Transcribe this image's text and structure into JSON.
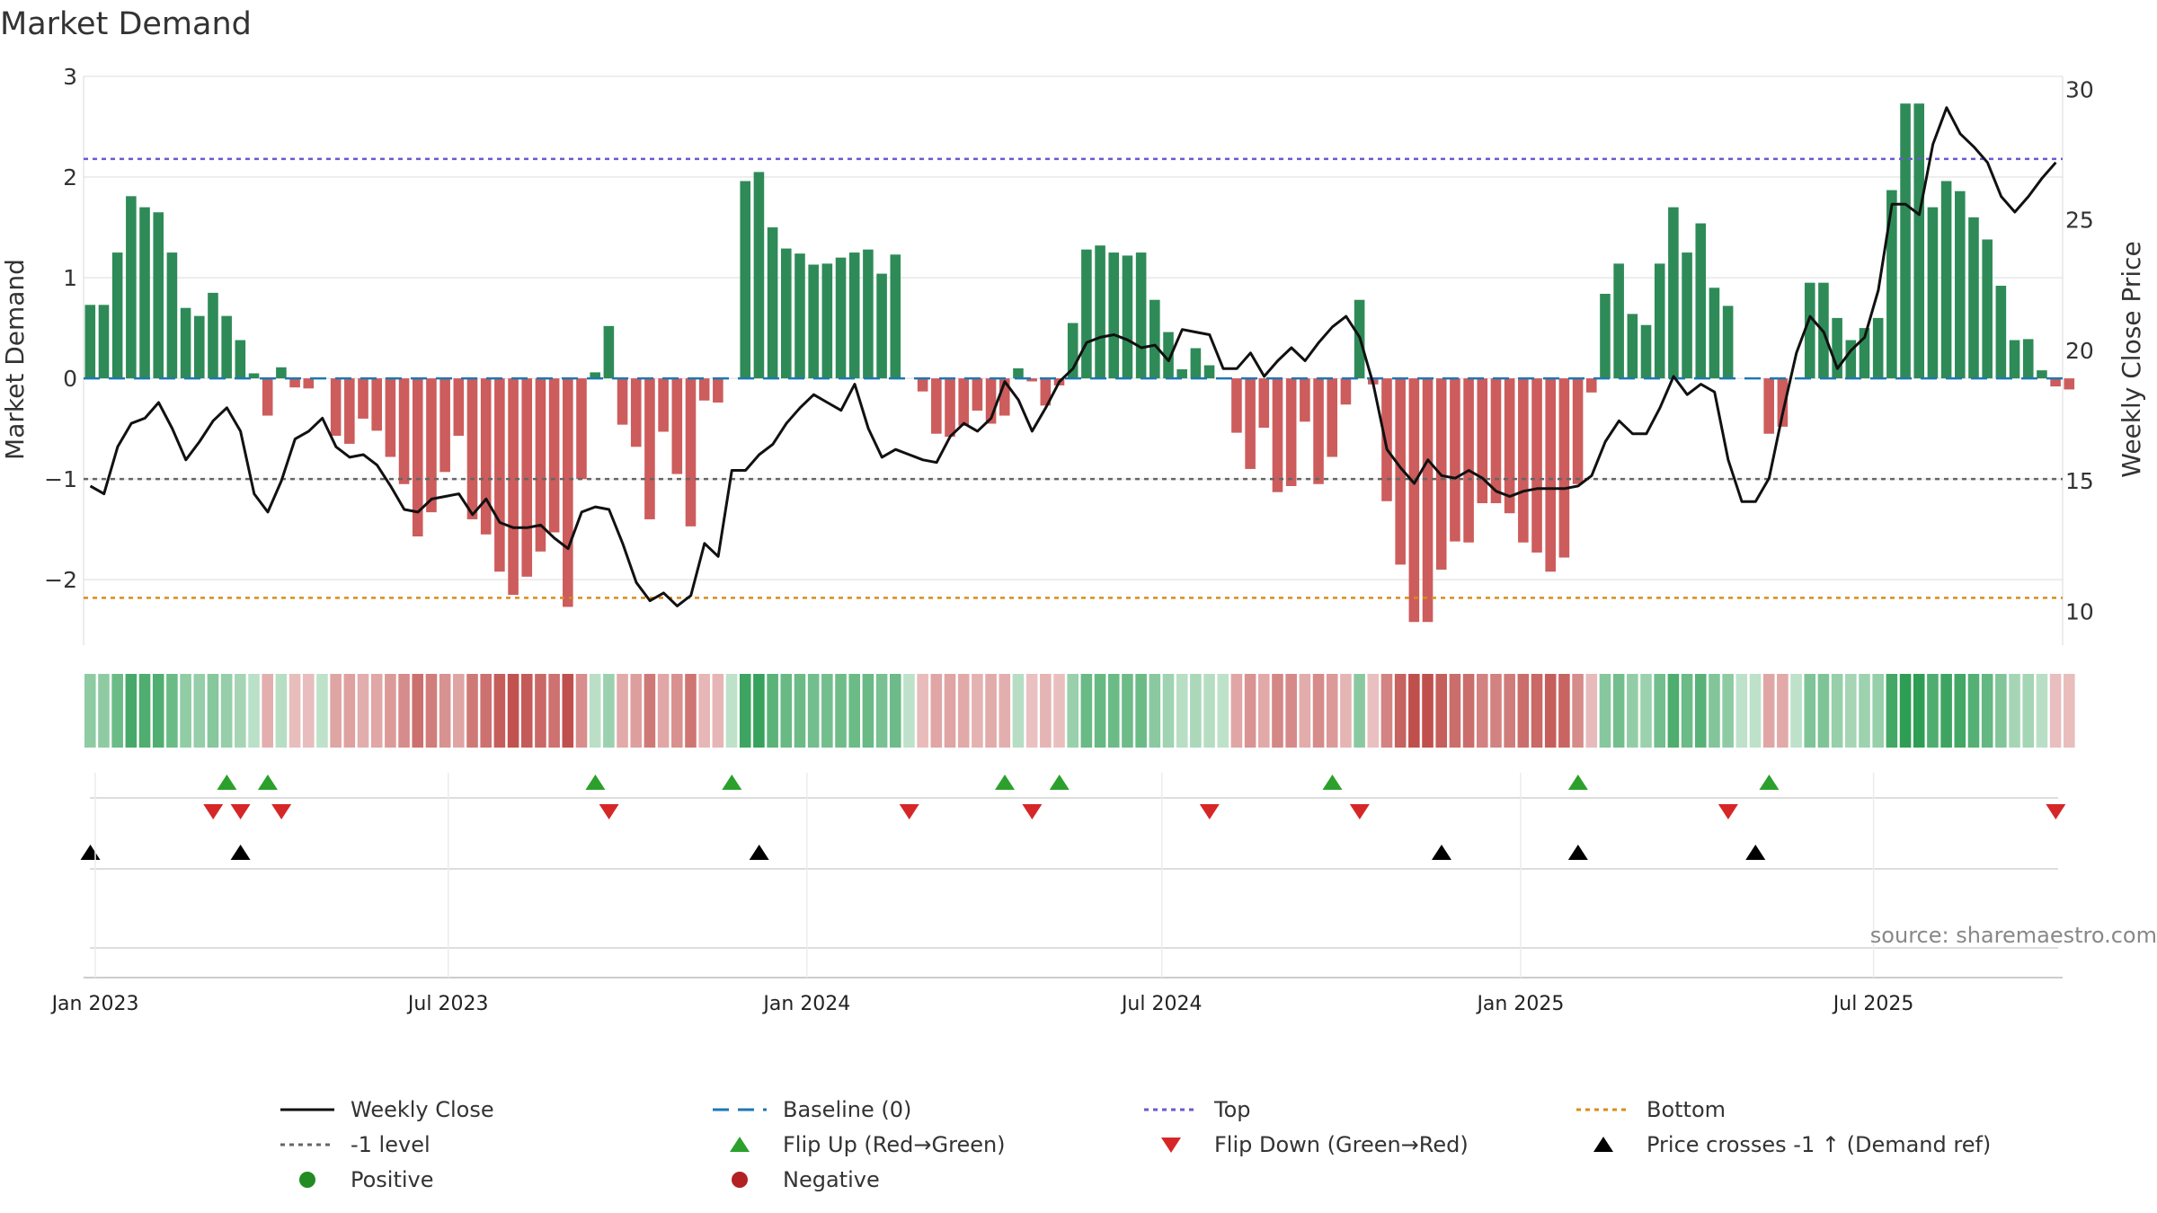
{
  "chart_data": {
    "type": "bar+line",
    "title": "Market Demand",
    "ylabel_left": "Market Demand",
    "ylabel_right": "Weekly Close Price",
    "ylim_left": [
      -2.65,
      3.0
    ],
    "ylim_right": [
      8.7,
      30.5
    ],
    "yticks_left": [
      3,
      2,
      1,
      0,
      -1,
      -2
    ],
    "ytick_labels_left": [
      "3",
      "2",
      "1",
      "0",
      "−1",
      "−2"
    ],
    "yticks_right": [
      30,
      25,
      20,
      15,
      10
    ],
    "ytick_labels_right": [
      "30",
      "25",
      "20",
      "15",
      "10"
    ],
    "x_start": "2022-12-26",
    "x_end": "2025-10-06",
    "xtick_labels": [
      "Jan 2023",
      "Jul 2023",
      "Jan 2024",
      "Jul 2024",
      "Jan 2025",
      "Jul 2025"
    ],
    "xtick_dates": [
      "2023-01-01",
      "2023-07-01",
      "2024-01-01",
      "2024-07-01",
      "2025-01-01",
      "2025-07-01"
    ],
    "source": "source: sharemaestro.com",
    "levels": {
      "top": 2.18,
      "bottom": -2.18,
      "minus_one": -1,
      "baseline": 0
    },
    "demand": [
      0.73,
      0.73,
      1.25,
      1.81,
      1.7,
      1.65,
      1.25,
      0.7,
      0.62,
      0.85,
      0.62,
      0.38,
      0.05,
      -0.37,
      0.11,
      -0.09,
      -0.1,
      0.0,
      -0.57,
      -0.65,
      -0.4,
      -0.52,
      -0.78,
      -1.05,
      -1.57,
      -1.33,
      -0.93,
      -0.57,
      -1.4,
      -1.55,
      -1.92,
      -2.15,
      -1.97,
      -1.72,
      -1.53,
      -2.27,
      -1.0,
      0.06,
      0.52,
      -0.46,
      -0.68,
      -1.4,
      -0.53,
      -0.95,
      -1.47,
      -0.22,
      -0.24,
      0.0,
      1.96,
      2.05,
      1.5,
      1.29,
      1.24,
      1.13,
      1.14,
      1.2,
      1.25,
      1.28,
      1.04,
      1.23,
      0.0,
      -0.13,
      -0.55,
      -0.58,
      -0.47,
      -0.32,
      -0.45,
      -0.37,
      0.1,
      -0.03,
      -0.27,
      -0.07,
      0.55,
      1.28,
      1.32,
      1.25,
      1.22,
      1.25,
      0.78,
      0.46,
      0.09,
      0.3,
      0.13,
      0.0,
      -0.54,
      -0.9,
      -0.49,
      -1.13,
      -1.07,
      -0.43,
      -1.05,
      -0.78,
      -0.26,
      0.78,
      -0.06,
      -1.22,
      -1.85,
      -2.42,
      -2.42,
      -1.9,
      -1.62,
      -1.63,
      -1.24,
      -1.24,
      -1.34,
      -1.63,
      -1.73,
      -1.92,
      -1.78,
      -1.05,
      -0.14,
      0.84,
      1.14,
      0.64,
      0.53,
      1.14,
      1.7,
      1.25,
      1.54,
      0.9,
      0.72,
      0.0,
      0.0,
      -0.55,
      -0.48,
      0.0,
      0.95,
      0.95,
      0.6,
      0.38,
      0.5,
      0.6,
      1.87,
      2.73,
      2.73,
      1.7,
      1.96,
      1.86,
      1.6,
      1.38,
      0.92,
      0.38,
      0.39,
      0.08,
      -0.08,
      -0.11
    ],
    "weekly_close": [
      14.8,
      14.5,
      16.3,
      17.2,
      17.4,
      18.0,
      17.0,
      15.8,
      16.5,
      17.3,
      17.8,
      16.9,
      14.5,
      13.8,
      15.0,
      16.6,
      16.9,
      17.4,
      16.3,
      15.9,
      16.0,
      15.6,
      14.8,
      13.9,
      13.8,
      14.3,
      14.4,
      14.5,
      13.7,
      14.3,
      13.4,
      13.2,
      13.2,
      13.3,
      12.8,
      12.4,
      13.8,
      14.0,
      13.9,
      12.6,
      11.1,
      10.4,
      10.7,
      10.2,
      10.6,
      12.6,
      12.1,
      15.4,
      15.4,
      16.0,
      16.4,
      17.2,
      17.8,
      18.3,
      18.0,
      17.7,
      18.7,
      17.0,
      15.9,
      16.2,
      16.0,
      15.8,
      15.7,
      16.7,
      17.2,
      16.9,
      17.4,
      18.8,
      18.1,
      16.9,
      17.8,
      18.8,
      19.3,
      20.3,
      20.5,
      20.6,
      20.4,
      20.1,
      20.2,
      19.6,
      20.8,
      20.7,
      20.6,
      19.3,
      19.3,
      19.9,
      19.0,
      19.6,
      20.1,
      19.6,
      20.3,
      20.9,
      21.3,
      20.5,
      18.7,
      16.2,
      15.5,
      14.9,
      15.8,
      15.2,
      15.1,
      15.4,
      15.1,
      14.6,
      14.4,
      14.6,
      14.7,
      14.7,
      14.7,
      14.8,
      15.2,
      16.5,
      17.3,
      16.8,
      16.8,
      17.8,
      19.0,
      18.3,
      18.7,
      18.4,
      15.8,
      14.2,
      14.2,
      15.1,
      17.6,
      19.9,
      21.3,
      20.7,
      19.3,
      20.0,
      20.5,
      22.3,
      25.6,
      25.6,
      25.2,
      27.9,
      29.3,
      28.3,
      27.8,
      27.2,
      25.9,
      25.3,
      25.9,
      26.6,
      27.2
    ],
    "color_strip": "0.5*SIGMOID(demand)",
    "markers": {
      "flip_up": [
        "2023-03-06",
        "2023-03-27",
        "2023-09-11",
        "2023-11-20",
        "2024-04-08",
        "2024-05-06",
        "2024-09-23",
        "2025-01-27",
        "2025-05-05"
      ],
      "flip_down": [
        "2023-02-27",
        "2023-03-13",
        "2023-04-03",
        "2023-09-18",
        "2024-02-19",
        "2024-04-22",
        "2024-07-22",
        "2024-10-07",
        "2025-04-14",
        "2025-09-29"
      ],
      "price_cross": [
        "2022-12-26",
        "2023-03-13",
        "2023-12-04",
        "2024-11-18",
        "2025-01-27",
        "2025-04-28"
      ]
    },
    "legend": [
      "Weekly Close",
      "Baseline (0)",
      "Top",
      "Bottom",
      "-1 level",
      "Flip Up (Red→Green)",
      "Flip Down (Green→Red)",
      "Price crosses -1 ↑ (Demand ref)",
      "Positive",
      "Negative"
    ],
    "colors": {
      "positive": "#2e8b57",
      "negative": "#cd5c5c",
      "close": "#111111",
      "baseline": "#1f77b4",
      "top": "#6a5acd",
      "bottom": "#d98c1a",
      "minus_one": "#666666",
      "flip_up": "#2ca02c",
      "flip_down": "#d62728",
      "cross": "#000000",
      "positive_dot": "#228b22",
      "negative_dot": "#b22222"
    }
  }
}
